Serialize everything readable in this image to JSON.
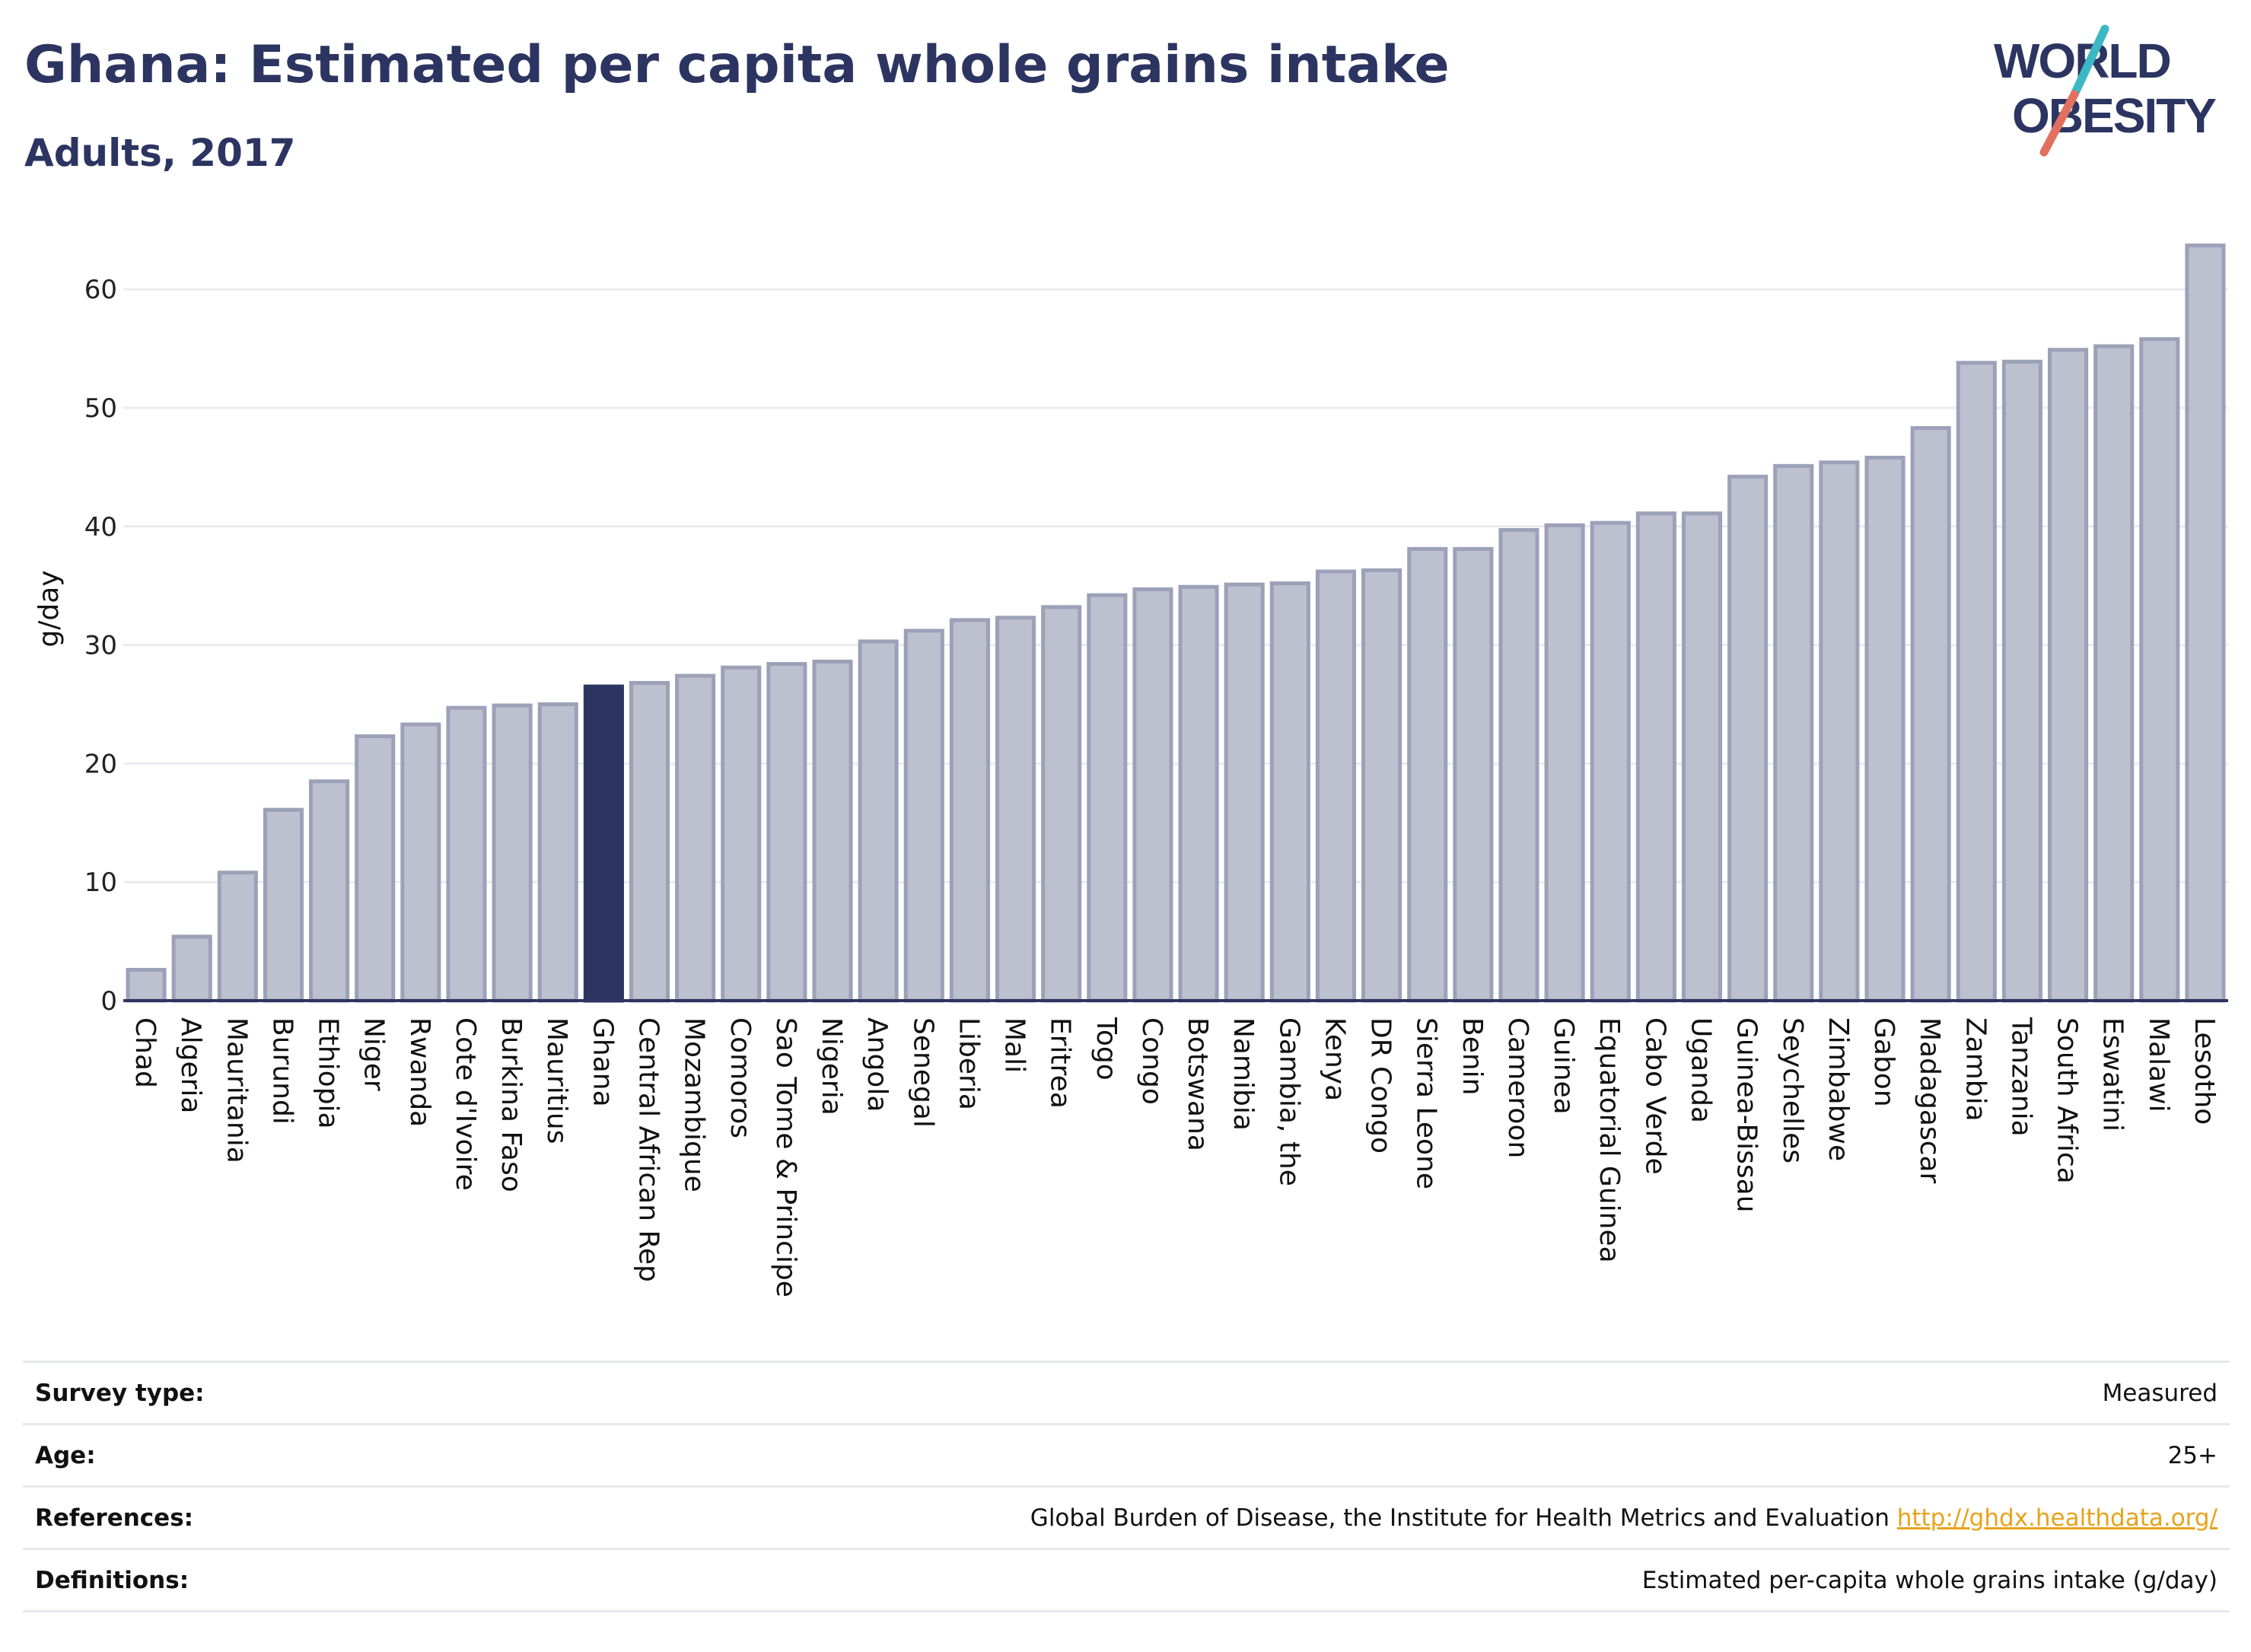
{
  "header": {
    "title": "Ghana: Estimated per capita whole grains intake",
    "subtitle": "Adults, 2017"
  },
  "logo": {
    "line1": "WORLD",
    "line2": "OBESITY"
  },
  "colors": {
    "highlight": "#2c3561",
    "bar": "#bcc0cf",
    "bar_stroke": "#9ca1b8",
    "accent_teal": "#3ab8c3",
    "accent_coral": "#e2705f"
  },
  "chart_data": {
    "type": "bar",
    "title": "Ghana: Estimated per capita whole grains intake",
    "subtitle": "Adults, 2017",
    "xlabel": "",
    "ylabel": "g/day",
    "ylim": [
      0,
      65
    ],
    "yticks": [
      0,
      10,
      20,
      30,
      40,
      50,
      60
    ],
    "grid": true,
    "highlight": "Ghana",
    "categories": [
      "Chad",
      "Algeria",
      "Mauritania",
      "Burundi",
      "Ethiopia",
      "Niger",
      "Rwanda",
      "Cote d'Ivoire",
      "Burkina Faso",
      "Mauritius",
      "Ghana",
      "Central African Rep",
      "Mozambique",
      "Comoros",
      "Sao Tome & Principe",
      "Nigeria",
      "Angola",
      "Senegal",
      "Liberia",
      "Mali",
      "Eritrea",
      "Togo",
      "Congo",
      "Botswana",
      "Namibia",
      "Gambia, the",
      "Kenya",
      "DR Congo",
      "Sierra Leone",
      "Benin",
      "Cameroon",
      "Guinea",
      "Equatorial Guinea",
      "Cabo Verde",
      "Uganda",
      "Guinea-Bissau",
      "Seychelles",
      "Zimbabwe",
      "Gabon",
      "Madagascar",
      "Zambia",
      "Tanzania",
      "South Africa",
      "Eswatini",
      "Malawi",
      "Lesotho"
    ],
    "values": [
      2.6,
      5.4,
      10.8,
      16.1,
      18.5,
      22.3,
      23.3,
      24.7,
      24.9,
      25.0,
      26.5,
      26.8,
      27.4,
      28.1,
      28.4,
      28.6,
      30.3,
      31.2,
      32.1,
      32.3,
      33.2,
      34.2,
      34.7,
      34.9,
      35.1,
      35.2,
      36.2,
      36.3,
      38.1,
      38.1,
      39.7,
      40.1,
      40.3,
      41.1,
      41.1,
      44.2,
      45.1,
      45.4,
      45.8,
      48.3,
      53.8,
      53.9,
      54.9,
      55.2,
      55.8,
      63.7
    ]
  },
  "info": [
    {
      "label": "Survey type:",
      "value": "Measured",
      "link": ""
    },
    {
      "label": "Age:",
      "value": "25+",
      "link": ""
    },
    {
      "label": "References:",
      "value": "Global Burden of Disease, the Institute for Health Metrics and Evaluation",
      "link": "http://ghdx.healthdata.org/"
    },
    {
      "label": "Definitions:",
      "value": "Estimated per-capita whole grains intake (g/day)",
      "link": ""
    }
  ]
}
